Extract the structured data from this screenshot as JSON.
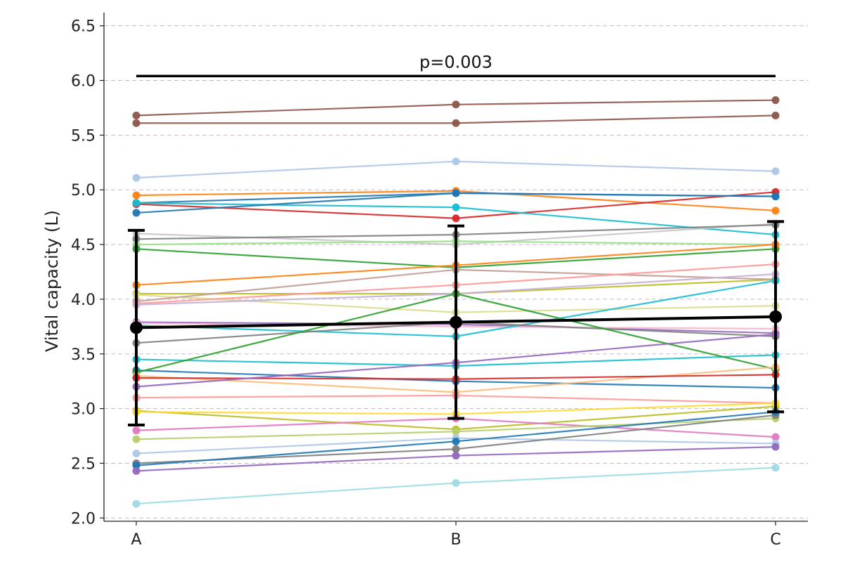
{
  "chart_data": {
    "type": "line",
    "title": "",
    "xlabel": "",
    "ylabel": "Vital capacity (L)",
    "categories": [
      "A",
      "B",
      "C"
    ],
    "ylim": [
      1.97,
      6.62
    ],
    "yticks": [
      "2.0",
      "2.5",
      "3.0",
      "3.5",
      "4.0",
      "4.5",
      "5.0",
      "5.5",
      "6.0",
      "6.5"
    ],
    "grid": "horizontal dashed",
    "annotation": {
      "text": "p=0.003",
      "level": 6.04,
      "from": "A",
      "to": "C"
    },
    "mean": {
      "values": [
        3.74,
        3.79,
        3.84
      ],
      "sd": [
        0.89,
        0.88,
        0.87
      ],
      "color": "#000000"
    },
    "series": [
      {
        "values": [
          5.68,
          5.78,
          5.82
        ],
        "color": "#8c564b"
      },
      {
        "values": [
          5.61,
          5.61,
          5.68
        ],
        "color": "#8c564b"
      },
      {
        "values": [
          5.11,
          5.26,
          5.17
        ],
        "color": "#aec7e8"
      },
      {
        "values": [
          4.95,
          4.99,
          4.81
        ],
        "color": "#ff7f0e"
      },
      {
        "values": [
          4.88,
          4.97,
          4.94
        ],
        "color": "#1f77b4"
      },
      {
        "values": [
          4.87,
          4.74,
          4.98
        ],
        "color": "#d62728"
      },
      {
        "values": [
          4.88,
          4.84,
          4.59
        ],
        "color": "#17becf"
      },
      {
        "values": [
          4.79,
          4.97,
          4.94
        ],
        "color": "#1f77b4"
      },
      {
        "values": [
          4.6,
          4.5,
          4.69
        ],
        "color": "#c7c7c7"
      },
      {
        "values": [
          4.55,
          4.59,
          4.68
        ],
        "color": "#7f7f7f"
      },
      {
        "values": [
          4.5,
          4.53,
          4.5
        ],
        "color": "#98df8a"
      },
      {
        "values": [
          4.46,
          4.29,
          4.46
        ],
        "color": "#2ca02c"
      },
      {
        "values": [
          4.13,
          4.31,
          4.5
        ],
        "color": "#ff7f0e"
      },
      {
        "values": [
          4.05,
          4.05,
          4.18
        ],
        "color": "#bcbd22"
      },
      {
        "values": [
          4.04,
          3.88,
          3.94
        ],
        "color": "#dbdb8d"
      },
      {
        "values": [
          3.98,
          4.27,
          4.18
        ],
        "color": "#c49c94"
      },
      {
        "values": [
          3.96,
          4.13,
          4.32
        ],
        "color": "#ff9896"
      },
      {
        "values": [
          3.95,
          4.05,
          4.23
        ],
        "color": "#c5b0d5"
      },
      {
        "values": [
          3.79,
          3.77,
          3.69
        ],
        "color": "#9467bd"
      },
      {
        "values": [
          3.78,
          3.75,
          3.73
        ],
        "color": "#f7b6d2"
      },
      {
        "values": [
          3.76,
          3.66,
          4.17
        ],
        "color": "#17becf"
      },
      {
        "values": [
          3.6,
          3.79,
          3.66
        ],
        "color": "#7f7f7f"
      },
      {
        "values": [
          3.45,
          3.39,
          3.49
        ],
        "color": "#17becf"
      },
      {
        "values": [
          3.35,
          3.25,
          3.19
        ],
        "color": "#1f77b4"
      },
      {
        "values": [
          3.33,
          4.05,
          3.36
        ],
        "color": "#2ca02c"
      },
      {
        "values": [
          3.3,
          3.15,
          3.38
        ],
        "color": "#ffbb78"
      },
      {
        "values": [
          3.28,
          3.27,
          3.31
        ],
        "color": "#d62728"
      },
      {
        "values": [
          3.2,
          3.42,
          3.68
        ],
        "color": "#9467bd"
      },
      {
        "values": [
          3.1,
          3.12,
          3.05
        ],
        "color": "#ff9896"
      },
      {
        "values": [
          2.98,
          2.81,
          3.02
        ],
        "color": "#bcbd22"
      },
      {
        "values": [
          2.97,
          2.95,
          3.05
        ],
        "color": "#ffd92f"
      },
      {
        "values": [
          2.8,
          2.91,
          2.74
        ],
        "color": "#e377c2"
      },
      {
        "values": [
          2.72,
          2.79,
          2.91
        ],
        "color": "#b5cf6b"
      },
      {
        "values": [
          2.59,
          2.73,
          2.68
        ],
        "color": "#aec7e8"
      },
      {
        "values": [
          2.5,
          2.63,
          2.94
        ],
        "color": "#7f7f7f"
      },
      {
        "values": [
          2.48,
          2.7,
          2.97
        ],
        "color": "#1f77b4"
      },
      {
        "values": [
          2.43,
          2.57,
          2.65
        ],
        "color": "#9467bd"
      },
      {
        "values": [
          2.13,
          2.32,
          2.46
        ],
        "color": "#9edae5"
      }
    ]
  }
}
